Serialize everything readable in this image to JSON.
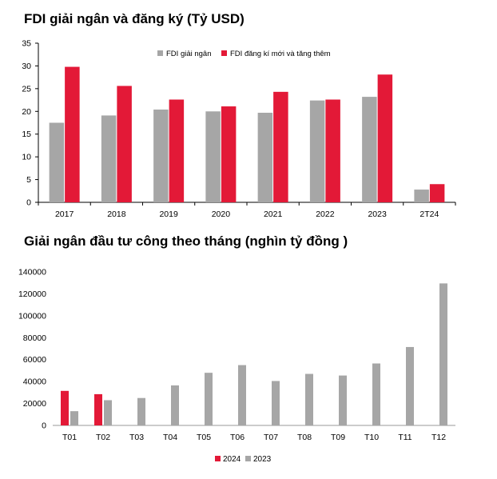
{
  "chart_data": [
    {
      "type": "bar",
      "title": "FDI giải ngân và đăng ký (Tỷ USD)",
      "categories": [
        "2017",
        "2018",
        "2019",
        "2020",
        "2021",
        "2022",
        "2023",
        "2T24"
      ],
      "series": [
        {
          "name": "FDI giải ngân",
          "color": "#a6a6a6",
          "values": [
            17.5,
            19.1,
            20.4,
            20.0,
            19.7,
            22.4,
            23.2,
            2.8
          ]
        },
        {
          "name": "FDI đăng kí mới và tăng thêm",
          "color": "#e31937",
          "values": [
            29.8,
            25.6,
            22.6,
            21.1,
            24.3,
            22.6,
            28.1,
            4.0
          ]
        }
      ],
      "yticks": [
        "0",
        "5",
        "10",
        "15",
        "20",
        "25",
        "30",
        "35"
      ],
      "ylim": [
        0,
        35
      ],
      "xlabel": "",
      "ylabel": "",
      "legend": "top-right"
    },
    {
      "type": "bar",
      "title": "Giải ngân đầu tư công theo tháng (nghìn tỷ đồng )",
      "categories": [
        "T01",
        "T02",
        "T03",
        "T04",
        "T05",
        "T06",
        "T07",
        "T08",
        "T09",
        "T10",
        "T11",
        "T12"
      ],
      "series": [
        {
          "name": "2024",
          "color": "#e31937",
          "values": [
            31500,
            28500,
            null,
            null,
            null,
            null,
            null,
            null,
            null,
            null,
            null,
            null
          ]
        },
        {
          "name": "2023",
          "color": "#a6a6a6",
          "values": [
            13000,
            23000,
            25000,
            36500,
            48000,
            55000,
            40500,
            47000,
            45500,
            56500,
            71500,
            129500
          ]
        }
      ],
      "yticks": [
        "0",
        "20000",
        "40000",
        "60000",
        "80000",
        "100000",
        "120000",
        "140000"
      ],
      "ylim": [
        0,
        140000
      ],
      "xlabel": "",
      "ylabel": "",
      "legend": "bottom-center"
    }
  ]
}
